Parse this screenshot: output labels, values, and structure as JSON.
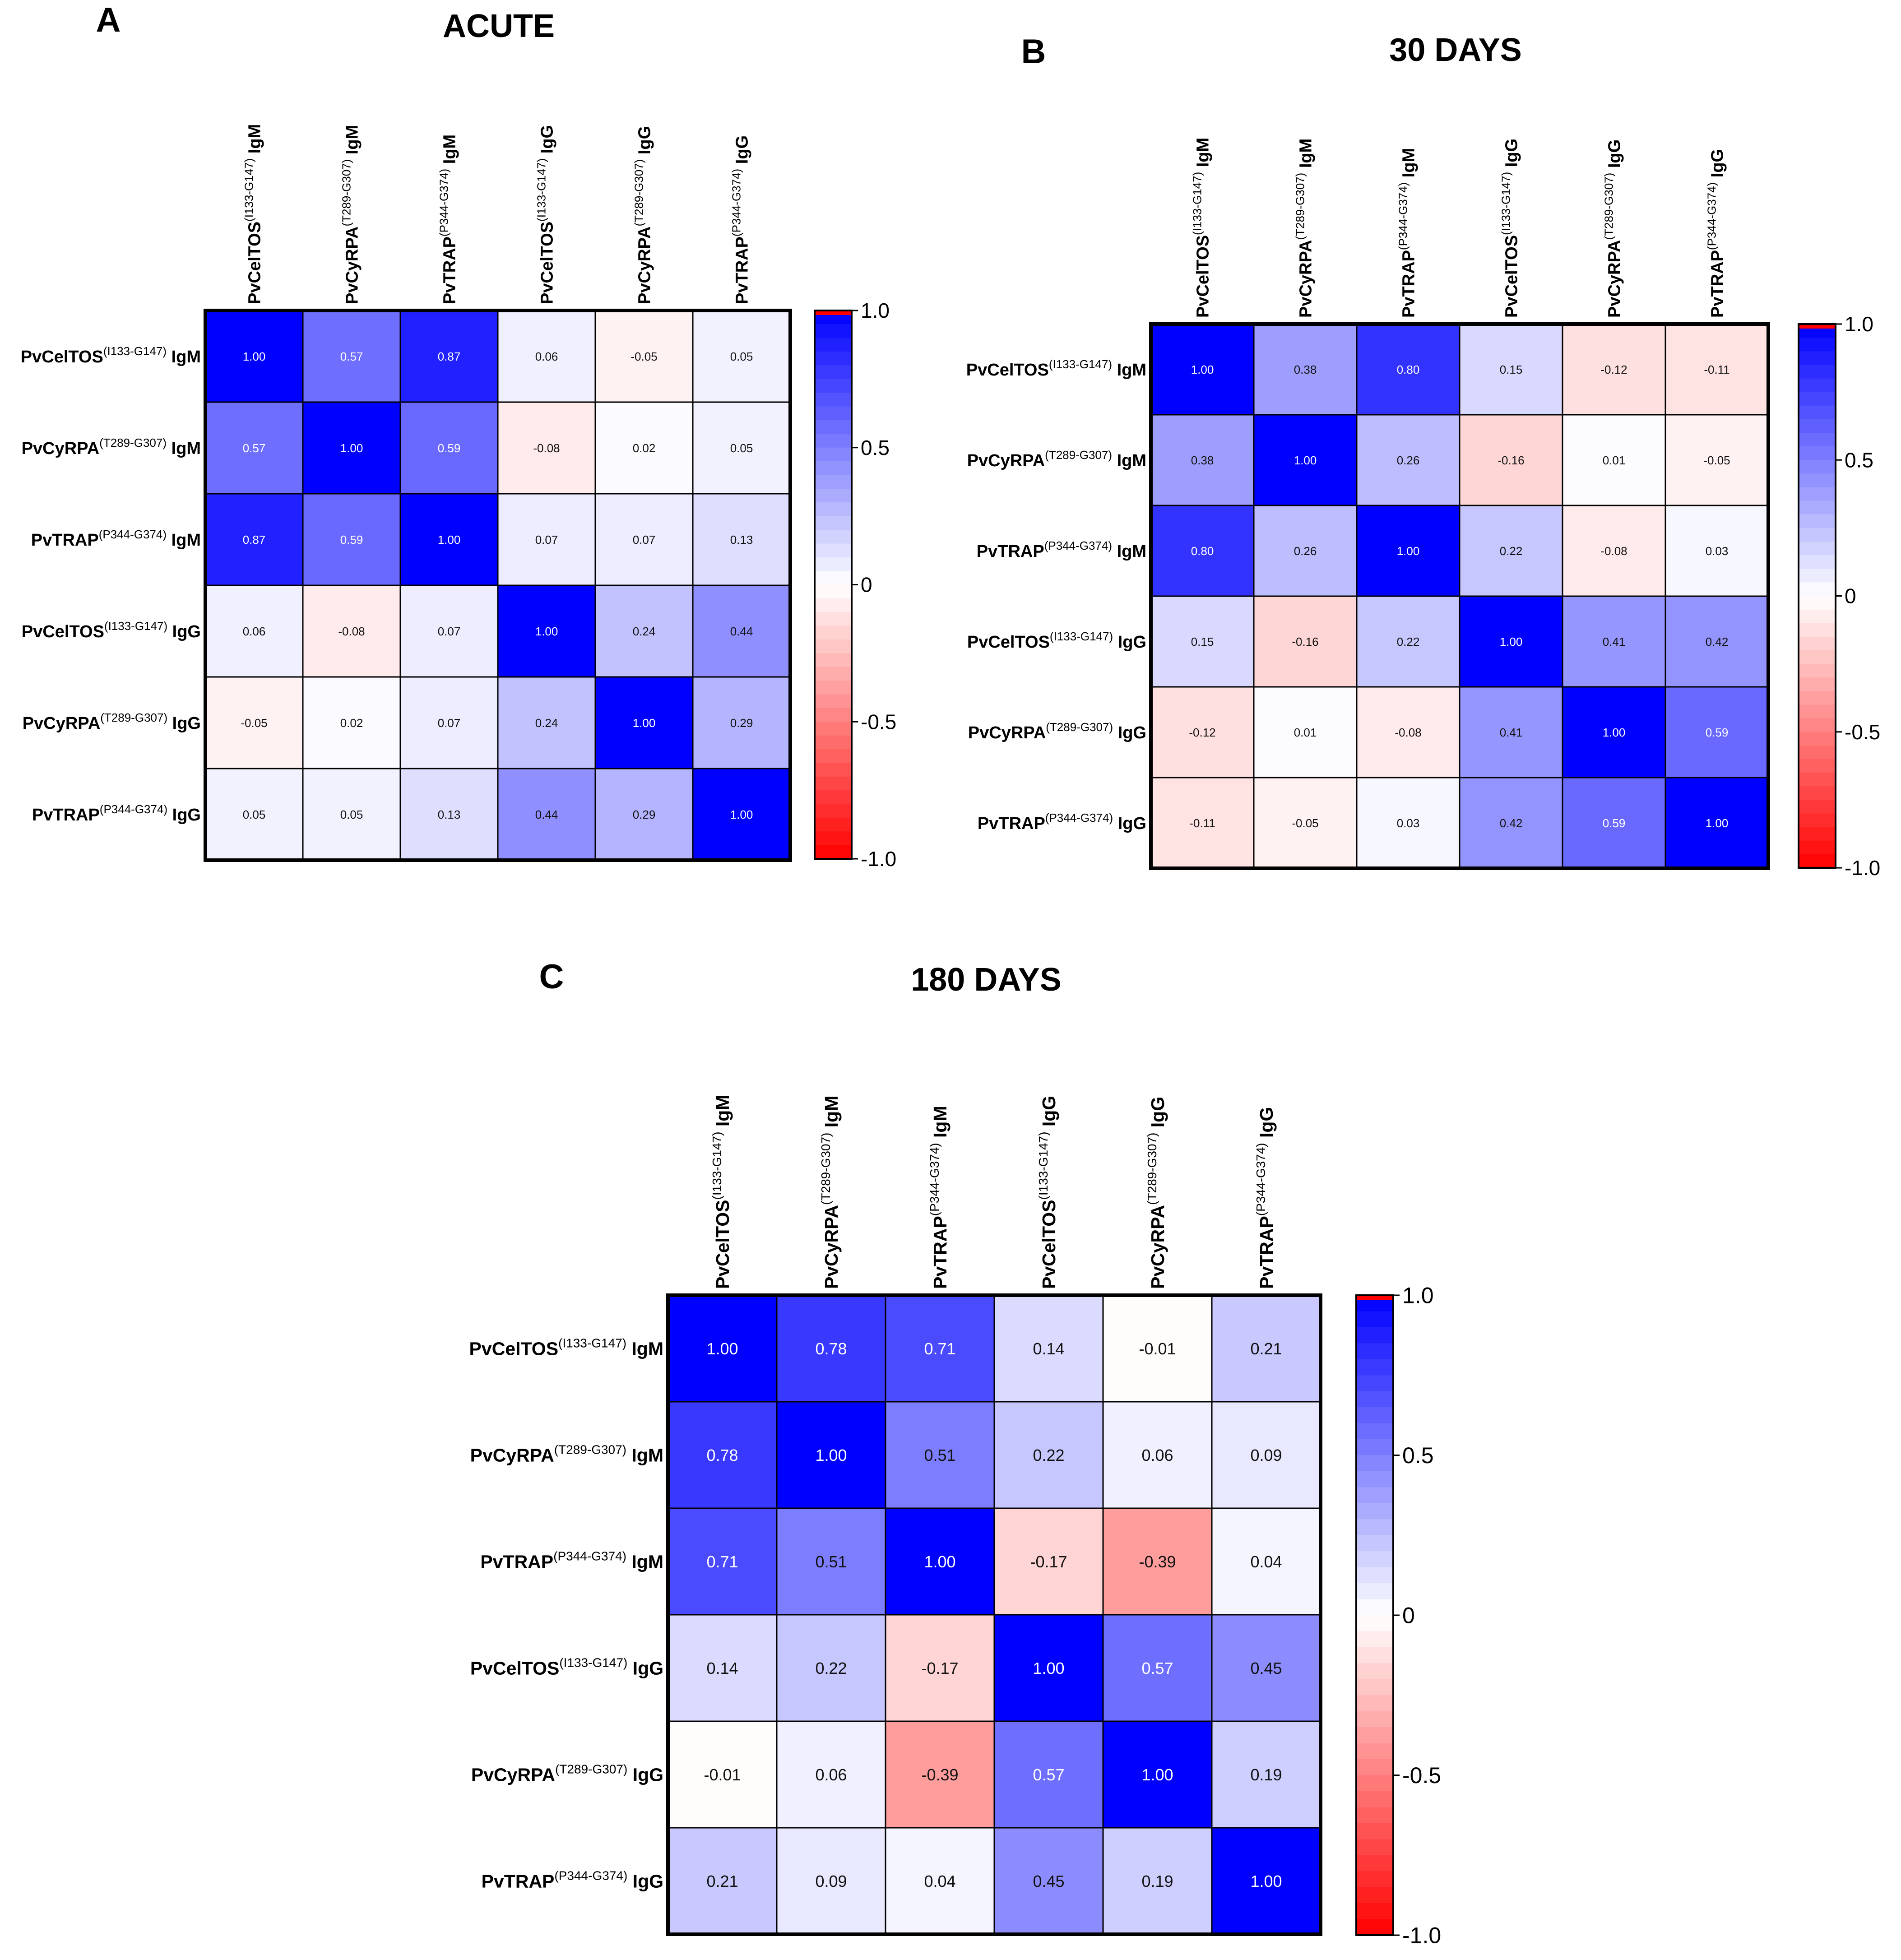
{
  "chart_data": [
    {
      "type": "heatmap",
      "panel": "A",
      "title": "ACUTE",
      "labels": [
        {
          "base": "PvCelTOS",
          "sup": "(I133-G147)",
          "suffix": "IgM"
        },
        {
          "base": "PvCyRPA",
          "sup": "(T289-G307)",
          "suffix": "IgM"
        },
        {
          "base": "PvTRAP",
          "sup": "(P344-G374)",
          "suffix": "IgM"
        },
        {
          "base": "PvCelTOS",
          "sup": "(I133-G147)",
          "suffix": "IgG"
        },
        {
          "base": "PvCyRPA",
          "sup": "(T289-G307)",
          "suffix": "IgG"
        },
        {
          "base": "PvTRAP",
          "sup": "(P344-G374)",
          "suffix": "IgG"
        }
      ],
      "matrix": [
        [
          1.0,
          0.57,
          0.87,
          0.06,
          -0.05,
          0.05
        ],
        [
          0.57,
          1.0,
          0.59,
          -0.08,
          0.02,
          0.05
        ],
        [
          0.87,
          0.59,
          1.0,
          0.07,
          0.07,
          0.13
        ],
        [
          0.06,
          -0.08,
          0.07,
          1.0,
          0.24,
          0.44
        ],
        [
          -0.05,
          0.02,
          0.07,
          0.24,
          1.0,
          0.29
        ],
        [
          0.05,
          0.05,
          0.13,
          0.44,
          0.29,
          1.0
        ]
      ],
      "colorbar": {
        "range": [
          -1.0,
          1.0
        ],
        "ticks": [
          "1.0",
          "0.5",
          "0",
          "-0.5",
          "-1.0"
        ],
        "tick_values": [
          1.0,
          0.5,
          0,
          -0.5,
          -1.0
        ]
      }
    },
    {
      "type": "heatmap",
      "panel": "B",
      "title": "30 DAYS",
      "labels": [
        {
          "base": "PvCelTOS",
          "sup": "(I133-G147)",
          "suffix": "IgM"
        },
        {
          "base": "PvCyRPA",
          "sup": "(T289-G307)",
          "suffix": "IgM"
        },
        {
          "base": "PvTRAP",
          "sup": "(P344-G374)",
          "suffix": "IgM"
        },
        {
          "base": "PvCelTOS",
          "sup": "(I133-G147)",
          "suffix": "IgG"
        },
        {
          "base": "PvCyRPA",
          "sup": "(T289-G307)",
          "suffix": "IgG"
        },
        {
          "base": "PvTRAP",
          "sup": "(P344-G374)",
          "suffix": "IgG"
        }
      ],
      "matrix": [
        [
          1.0,
          0.38,
          0.8,
          0.15,
          -0.12,
          -0.11
        ],
        [
          0.38,
          1.0,
          0.26,
          -0.16,
          0.01,
          -0.05
        ],
        [
          0.8,
          0.26,
          1.0,
          0.22,
          -0.08,
          0.03
        ],
        [
          0.15,
          -0.16,
          0.22,
          1.0,
          0.41,
          0.42
        ],
        [
          -0.12,
          0.01,
          -0.08,
          0.41,
          1.0,
          0.59
        ],
        [
          -0.11,
          -0.05,
          0.03,
          0.42,
          0.59,
          1.0
        ]
      ],
      "colorbar": {
        "range": [
          -1.0,
          1.0
        ],
        "ticks": [
          "1.0",
          "0.5",
          "0",
          "-0.5",
          "-1.0"
        ],
        "tick_values": [
          1.0,
          0.5,
          0,
          -0.5,
          -1.0
        ]
      }
    },
    {
      "type": "heatmap",
      "panel": "C",
      "title": "180 DAYS",
      "labels": [
        {
          "base": "PvCelTOS",
          "sup": "(I133-G147)",
          "suffix": "IgM"
        },
        {
          "base": "PvCyRPA",
          "sup": "(T289-G307)",
          "suffix": "IgM"
        },
        {
          "base": "PvTRAP",
          "sup": "(P344-G374)",
          "suffix": "IgM"
        },
        {
          "base": "PvCelTOS",
          "sup": "(I133-G147)",
          "suffix": "IgG"
        },
        {
          "base": "PvCyRPA",
          "sup": "(T289-G307)",
          "suffix": "IgG"
        },
        {
          "base": "PvTRAP",
          "sup": "(P344-G374)",
          "suffix": "IgG"
        }
      ],
      "matrix": [
        [
          1.0,
          0.78,
          0.71,
          0.14,
          -0.01,
          0.21
        ],
        [
          0.78,
          1.0,
          0.51,
          0.22,
          0.06,
          0.09
        ],
        [
          0.71,
          0.51,
          1.0,
          -0.17,
          -0.39,
          0.04
        ],
        [
          0.14,
          0.22,
          -0.17,
          1.0,
          0.57,
          0.45
        ],
        [
          -0.01,
          0.06,
          -0.39,
          0.57,
          1.0,
          0.19
        ],
        [
          0.21,
          0.09,
          0.04,
          0.45,
          0.19,
          1.0
        ]
      ],
      "colorbar": {
        "range": [
          -1.0,
          1.0
        ],
        "ticks": [
          "1.0",
          "0.5",
          "0",
          "-0.5",
          "-1.0"
        ],
        "tick_values": [
          1.0,
          0.5,
          0,
          -0.5,
          -1.0
        ]
      }
    }
  ],
  "colors": {
    "positive": "#0000ff",
    "negative": "#ff0000",
    "neutral": "#ffffff",
    "grid": "#000000"
  }
}
